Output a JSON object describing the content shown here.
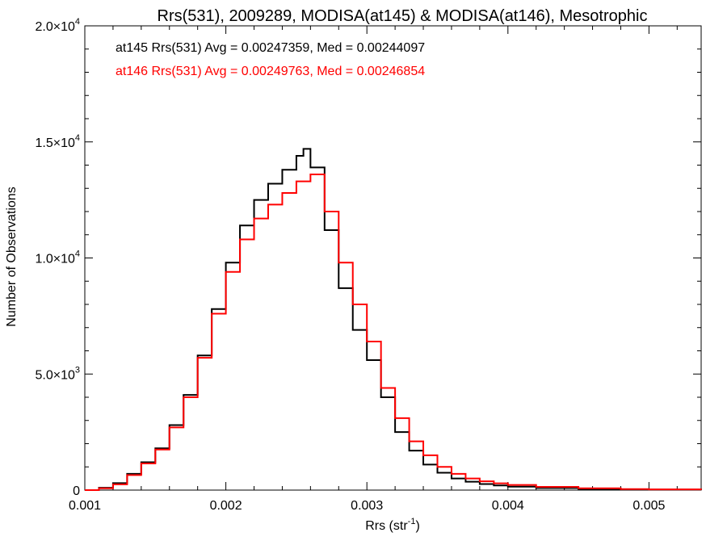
{
  "chart_data": {
    "type": "line",
    "title": "Rrs(531), 2009289, MODISA(at145) & MODISA(at146), Mesotrophic",
    "xlabel": {
      "base": "Rrs (str",
      "sup": "-1",
      "close": ")"
    },
    "ylabel": "Number of Observations",
    "xlim": [
      0.001,
      0.00537
    ],
    "ylim": [
      0,
      20000
    ],
    "xticks": [
      {
        "value": 0.001,
        "label": "0.001"
      },
      {
        "value": 0.002,
        "label": "0.002"
      },
      {
        "value": 0.003,
        "label": "0.003"
      },
      {
        "value": 0.004,
        "label": "0.004"
      },
      {
        "value": 0.005,
        "label": "0.005"
      }
    ],
    "yticks": [
      {
        "value": 0,
        "mant": "0",
        "exp": ""
      },
      {
        "value": 5000,
        "mant": "5.0×10",
        "exp": "3"
      },
      {
        "value": 10000,
        "mant": "1.0×10",
        "exp": "4"
      },
      {
        "value": 15000,
        "mant": "1.5×10",
        "exp": "4"
      },
      {
        "value": 20000,
        "mant": "2.0×10",
        "exp": "4"
      }
    ],
    "grid": false,
    "annotations": [
      {
        "text": "at145 Rrs(531) Avg = 0.00247359, Med = 0.00244097",
        "color": "#000000"
      },
      {
        "text": "at146 Rrs(531) Avg = 0.00249763, Med = 0.00246854",
        "color": "#ff0000"
      }
    ],
    "series": [
      {
        "color": "#000000",
        "x": [
          0.001,
          0.0011,
          0.0012,
          0.0013,
          0.0014,
          0.0015,
          0.0016,
          0.0017,
          0.0018,
          0.0019,
          0.002,
          0.0021,
          0.0022,
          0.0023,
          0.0024,
          0.0025,
          0.00255,
          0.0026,
          0.0027,
          0.0028,
          0.0029,
          0.003,
          0.0031,
          0.0032,
          0.0033,
          0.0034,
          0.0035,
          0.0036,
          0.0037,
          0.0038,
          0.0039,
          0.004,
          0.0042,
          0.0045,
          0.0048,
          0.005,
          0.00537
        ],
        "y": [
          0,
          100,
          300,
          700,
          1200,
          1800,
          2800,
          4100,
          5800,
          7800,
          9800,
          11400,
          12500,
          13200,
          13800,
          14400,
          14700,
          13900,
          11200,
          8700,
          6900,
          5600,
          4000,
          2500,
          1700,
          1100,
          750,
          500,
          360,
          260,
          200,
          150,
          90,
          50,
          30,
          20,
          10
        ]
      },
      {
        "color": "#ff0000",
        "x": [
          0.001,
          0.0011,
          0.0012,
          0.0013,
          0.0014,
          0.0015,
          0.0016,
          0.0017,
          0.0018,
          0.0019,
          0.002,
          0.0021,
          0.0022,
          0.0023,
          0.0024,
          0.0025,
          0.0026,
          0.0027,
          0.0028,
          0.0029,
          0.003,
          0.0031,
          0.0032,
          0.0033,
          0.0034,
          0.0035,
          0.0036,
          0.0037,
          0.0038,
          0.0039,
          0.004,
          0.0042,
          0.0045,
          0.0048,
          0.005,
          0.00537
        ],
        "y": [
          0,
          80,
          250,
          650,
          1150,
          1750,
          2700,
          4000,
          5700,
          7600,
          9400,
          10800,
          11700,
          12300,
          12800,
          13300,
          13600,
          12000,
          9800,
          8000,
          6400,
          4400,
          3100,
          2100,
          1500,
          1000,
          700,
          500,
          380,
          290,
          220,
          140,
          80,
          45,
          30,
          15
        ]
      }
    ]
  }
}
